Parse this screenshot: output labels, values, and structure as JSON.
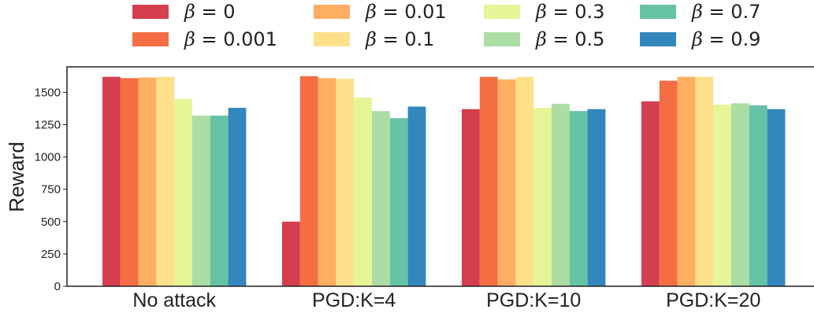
{
  "chart_data": {
    "type": "bar",
    "title": "",
    "xlabel": "",
    "ylabel": "Reward",
    "ylim": [
      0,
      1700
    ],
    "yticks": [
      0,
      250,
      500,
      750,
      1000,
      1250,
      1500
    ],
    "ytick_labels": [
      "0",
      "250",
      "500",
      "750",
      "1000",
      "1250",
      "1500"
    ],
    "grid": false,
    "legend_position": "top",
    "categories": [
      "No attack",
      "PGD:K=4",
      "PGD:K=10",
      "PGD:K=20"
    ],
    "series": [
      {
        "name": "β = 0",
        "beta": "0",
        "color": "#d53e4f",
        "values": [
          1620,
          500,
          1370,
          1430
        ]
      },
      {
        "name": "β = 0.001",
        "beta": "0.001",
        "color": "#f46d43",
        "values": [
          1610,
          1625,
          1620,
          1590
        ]
      },
      {
        "name": "β = 0.01",
        "beta": "0.01",
        "color": "#fdae61",
        "values": [
          1615,
          1610,
          1600,
          1620
        ]
      },
      {
        "name": "β = 0.1",
        "beta": "0.1",
        "color": "#fee08b",
        "values": [
          1620,
          1605,
          1620,
          1620
        ]
      },
      {
        "name": "β = 0.3",
        "beta": "0.3",
        "color": "#e6f598",
        "values": [
          1450,
          1460,
          1380,
          1405
        ]
      },
      {
        "name": "β = 0.5",
        "beta": "0.5",
        "color": "#abdda4",
        "values": [
          1320,
          1355,
          1410,
          1415
        ]
      },
      {
        "name": "β = 0.7",
        "beta": "0.7",
        "color": "#66c2a5",
        "values": [
          1320,
          1300,
          1355,
          1400
        ]
      },
      {
        "name": "β = 0.9",
        "beta": "0.9",
        "color": "#3288bd",
        "values": [
          1380,
          1390,
          1370,
          1370
        ]
      }
    ]
  }
}
